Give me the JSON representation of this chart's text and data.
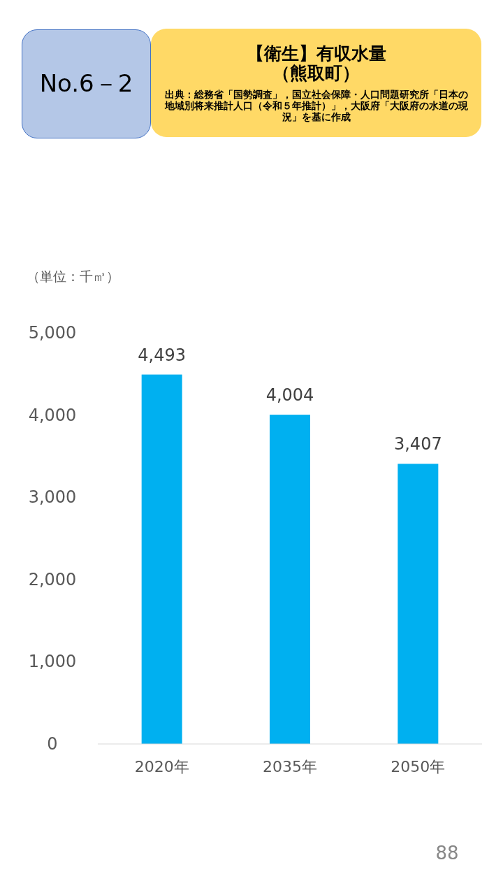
{
  "chart_data": {
    "type": "bar",
    "title": "【衛生】有収水量",
    "subtitle": "（熊取町）",
    "ylabel": "（単位：千㎥）",
    "annotations": [
      "No.6－2",
      "出典：総務省「国勢調査」，国立社会保障・人口問題研究所「日本の地域別将来推計人口（令和５年推計）」，大阪府「大阪府の水道の現況」を基に作成",
      "88"
    ],
    "categories": [
      "2020年",
      "2035年",
      "2050年"
    ],
    "values": [
      4493,
      4004,
      3407
    ],
    "color": "#00b0f0",
    "ylim": [
      0,
      5000
    ],
    "yticks": [
      0,
      {
        "value": 1000,
        "label": "1,000"
      },
      {
        "value": 2000,
        "label": "2,000"
      },
      {
        "value": 3000,
        "label": "3,000"
      },
      {
        "value": 4000,
        "label": "4,000"
      },
      {
        "value": 5000,
        "label": "5,000"
      }
    ],
    "value_labels": [
      "4,493",
      "4,004",
      "3,407"
    ]
  }
}
